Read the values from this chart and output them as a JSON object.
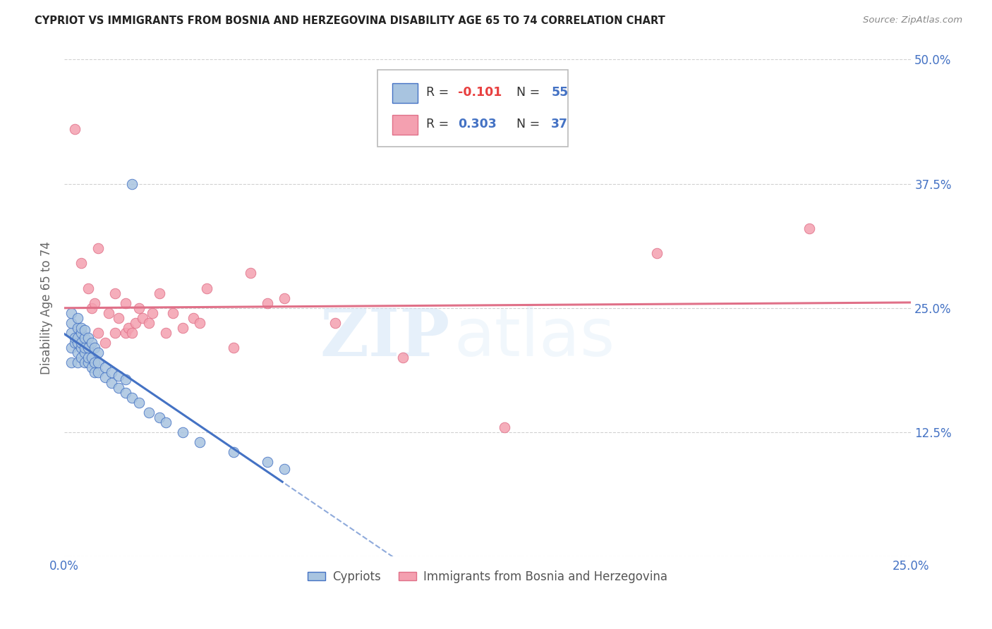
{
  "title": "CYPRIOT VS IMMIGRANTS FROM BOSNIA AND HERZEGOVINA DISABILITY AGE 65 TO 74 CORRELATION CHART",
  "source": "Source: ZipAtlas.com",
  "ylabel": "Disability Age 65 to 74",
  "xlim": [
    0.0,
    0.25
  ],
  "ylim": [
    0.0,
    0.5
  ],
  "blue_R": -0.101,
  "blue_N": 55,
  "pink_R": 0.303,
  "pink_N": 37,
  "blue_color": "#a8c4e0",
  "pink_color": "#f4a0b0",
  "blue_line_color": "#4472c4",
  "pink_line_color": "#e07088",
  "blue_x": [
    0.002,
    0.002,
    0.002,
    0.002,
    0.002,
    0.003,
    0.003,
    0.004,
    0.004,
    0.004,
    0.004,
    0.004,
    0.004,
    0.005,
    0.005,
    0.005,
    0.005,
    0.005,
    0.006,
    0.006,
    0.006,
    0.006,
    0.006,
    0.007,
    0.007,
    0.007,
    0.007,
    0.008,
    0.008,
    0.008,
    0.009,
    0.009,
    0.009,
    0.01,
    0.01,
    0.01,
    0.012,
    0.012,
    0.014,
    0.014,
    0.016,
    0.016,
    0.018,
    0.018,
    0.02,
    0.022,
    0.025,
    0.028,
    0.03,
    0.035,
    0.04,
    0.05,
    0.06,
    0.065,
    0.02
  ],
  "blue_y": [
    0.195,
    0.21,
    0.225,
    0.235,
    0.245,
    0.215,
    0.22,
    0.195,
    0.205,
    0.215,
    0.22,
    0.23,
    0.24,
    0.2,
    0.21,
    0.215,
    0.225,
    0.23,
    0.195,
    0.205,
    0.21,
    0.22,
    0.228,
    0.195,
    0.2,
    0.21,
    0.22,
    0.19,
    0.2,
    0.215,
    0.185,
    0.195,
    0.21,
    0.185,
    0.195,
    0.205,
    0.18,
    0.19,
    0.175,
    0.185,
    0.17,
    0.182,
    0.165,
    0.178,
    0.16,
    0.155,
    0.145,
    0.14,
    0.135,
    0.125,
    0.115,
    0.105,
    0.095,
    0.088,
    0.375
  ],
  "pink_x": [
    0.003,
    0.005,
    0.007,
    0.008,
    0.009,
    0.01,
    0.01,
    0.012,
    0.013,
    0.015,
    0.015,
    0.016,
    0.018,
    0.018,
    0.019,
    0.02,
    0.021,
    0.022,
    0.023,
    0.025,
    0.026,
    0.028,
    0.03,
    0.032,
    0.035,
    0.038,
    0.04,
    0.042,
    0.05,
    0.055,
    0.06,
    0.065,
    0.08,
    0.1,
    0.13,
    0.175,
    0.22
  ],
  "pink_y": [
    0.43,
    0.295,
    0.27,
    0.25,
    0.255,
    0.225,
    0.31,
    0.215,
    0.245,
    0.225,
    0.265,
    0.24,
    0.225,
    0.255,
    0.23,
    0.225,
    0.235,
    0.25,
    0.24,
    0.235,
    0.245,
    0.265,
    0.225,
    0.245,
    0.23,
    0.24,
    0.235,
    0.27,
    0.21,
    0.285,
    0.255,
    0.26,
    0.235,
    0.2,
    0.13,
    0.305,
    0.33
  ],
  "watermark_zip": "ZIP",
  "watermark_atlas": "atlas"
}
